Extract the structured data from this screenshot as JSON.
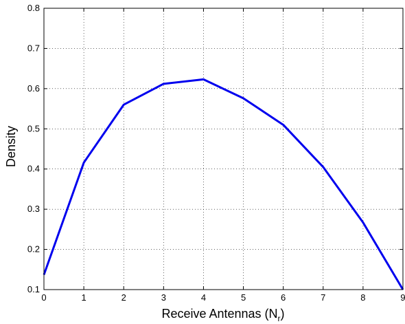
{
  "chart_data": {
    "type": "line",
    "title": "",
    "xlabel": "Receive Antennas (N",
    "xlabel_subscript": "r",
    "xlabel_suffix": ")",
    "ylabel": "Density",
    "xlim": [
      0,
      9
    ],
    "ylim": [
      0.1,
      0.8
    ],
    "xticks": [
      "0",
      "1",
      "2",
      "3",
      "4",
      "5",
      "6",
      "7",
      "8",
      "9"
    ],
    "yticks": [
      "0.1",
      "0.2",
      "0.3",
      "0.4",
      "0.5",
      "0.6",
      "0.7",
      "0.8"
    ],
    "grid": true,
    "series": [
      {
        "color": "#0000ee",
        "x": [
          0,
          1,
          2,
          3,
          4,
          5,
          6,
          7,
          8,
          9
        ],
        "values": [
          0.137,
          0.416,
          0.56,
          0.612,
          0.623,
          0.576,
          0.51,
          0.405,
          0.267,
          0.1
        ]
      }
    ]
  }
}
